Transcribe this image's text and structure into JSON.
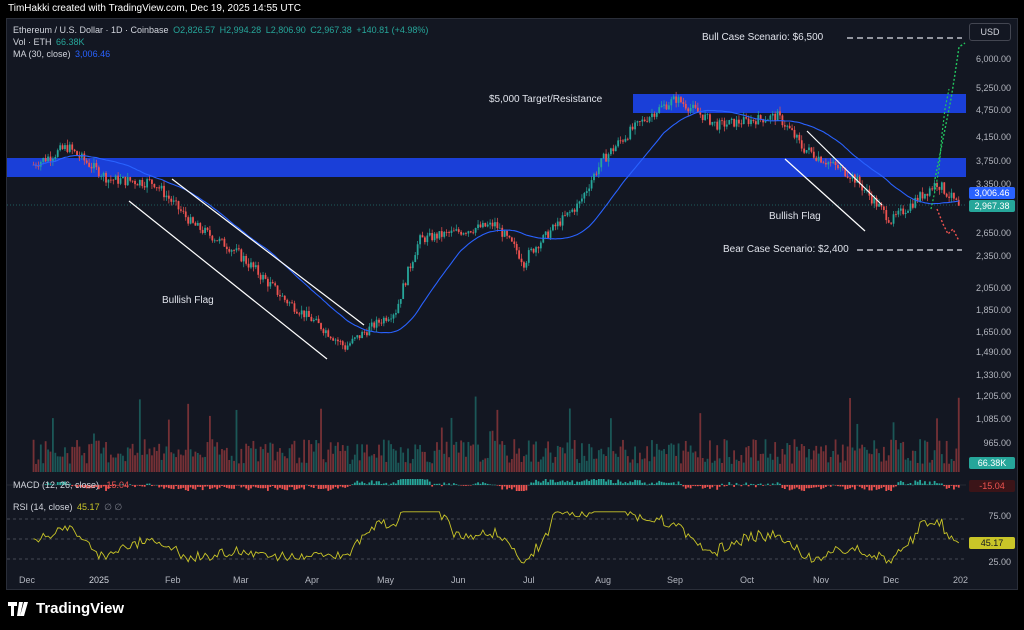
{
  "top_bar": {
    "text": "TimHakki created with TradingView.com, Dec 19, 2025 14:55 UTC"
  },
  "legend": {
    "symbol": "Ethereum / U.S. Dollar · 1D · Coinbase",
    "open": "O2,826.57",
    "high": "H2,994.28",
    "low": "L2,806.90",
    "close": "C2,967.38",
    "change": "+140.81 (+4.98%)",
    "vol_label": "Vol · ETH",
    "vol_value": "66.38K",
    "ma_label": "MA (30, close)",
    "ma_value": "3,006.46",
    "macd_label": "MACD (12, 26, close)",
    "macd_value": "-15.04",
    "rsi_label": "RSI (14, close)",
    "rsi_value": "45.17",
    "rsi_extra": "∅ ∅"
  },
  "currency": "USD",
  "annotations": {
    "bull_case": "Bull Case Scenario: $6,500",
    "bear_case": "Bear Case Scenario: $2,400",
    "target": "$5,000 Target/Resistance",
    "flag_left": "Bullish Flag",
    "flag_right": "Bullish Flag"
  },
  "price_tags": {
    "ma": "3,006.46",
    "close": "2,967.38",
    "volume": "66.38K",
    "macd": "-15.04",
    "rsi": "45.17"
  },
  "y_axis_labels": [
    "6,000.00",
    "5,250.00",
    "4,750.00",
    "4,150.00",
    "3,750.00",
    "3,350.00",
    "2,650.00",
    "2,350.00",
    "2,050.00",
    "1,850.00",
    "1,650.00",
    "1,490.00",
    "1,330.00",
    "1,205.00",
    "1,085.00",
    "965.00"
  ],
  "rsi_axis_labels": [
    "75.00",
    "25.00"
  ],
  "x_axis_labels": [
    "Dec",
    "2025",
    "Feb",
    "Mar",
    "Apr",
    "May",
    "Jun",
    "Jul",
    "Aug",
    "Sep",
    "Oct",
    "Nov",
    "Dec",
    "202"
  ],
  "footer": {
    "brand": "TradingView"
  },
  "colors": {
    "bg": "#131722",
    "up": "#26a69a",
    "down": "#ef5350",
    "ma": "#2962ff",
    "zone": "#1a3fd8",
    "rsi": "#c9c528"
  },
  "chart_data": {
    "type": "candlestick",
    "title": "Ethereum / U.S. Dollar · 1D · Coinbase",
    "x": [
      "Dec 2024",
      "Jan 2025",
      "Feb",
      "Mar",
      "Apr",
      "May",
      "Jun",
      "Jul",
      "Aug",
      "Sep",
      "Oct",
      "Nov",
      "Dec"
    ],
    "approx_close_path": [
      {
        "date": "2024-12-01",
        "close": 3600
      },
      {
        "date": "2024-12-15",
        "close": 3900
      },
      {
        "date": "2025-01-01",
        "close": 3350
      },
      {
        "date": "2025-01-20",
        "close": 3300
      },
      {
        "date": "2025-02-05",
        "close": 2700
      },
      {
        "date": "2025-02-25",
        "close": 2300
      },
      {
        "date": "2025-03-15",
        "close": 1900
      },
      {
        "date": "2025-04-09",
        "close": 1490
      },
      {
        "date": "2025-04-30",
        "close": 1800
      },
      {
        "date": "2025-05-10",
        "close": 2500
      },
      {
        "date": "2025-06-10",
        "close": 2700
      },
      {
        "date": "2025-06-22",
        "close": 2250
      },
      {
        "date": "2025-07-15",
        "close": 3000
      },
      {
        "date": "2025-07-25",
        "close": 3700
      },
      {
        "date": "2025-08-15",
        "close": 4600
      },
      {
        "date": "2025-08-24",
        "close": 4900
      },
      {
        "date": "2025-09-10",
        "close": 4300
      },
      {
        "date": "2025-10-05",
        "close": 4500
      },
      {
        "date": "2025-10-15",
        "close": 3900
      },
      {
        "date": "2025-11-05",
        "close": 3400
      },
      {
        "date": "2025-11-21",
        "close": 2750
      },
      {
        "date": "2025-12-10",
        "close": 3300
      },
      {
        "date": "2025-12-19",
        "close": 2967.38
      }
    ],
    "moving_average": {
      "name": "MA (30, close)",
      "last": 3006.46
    },
    "zones": [
      {
        "name": "$5,000 Target/Resistance",
        "low": 4600,
        "high": 5000
      },
      {
        "low": 3400,
        "high": 3750
      }
    ],
    "projections": {
      "bull": 6500,
      "bear": 2400
    },
    "ylim": [
      965,
      6500
    ]
  }
}
